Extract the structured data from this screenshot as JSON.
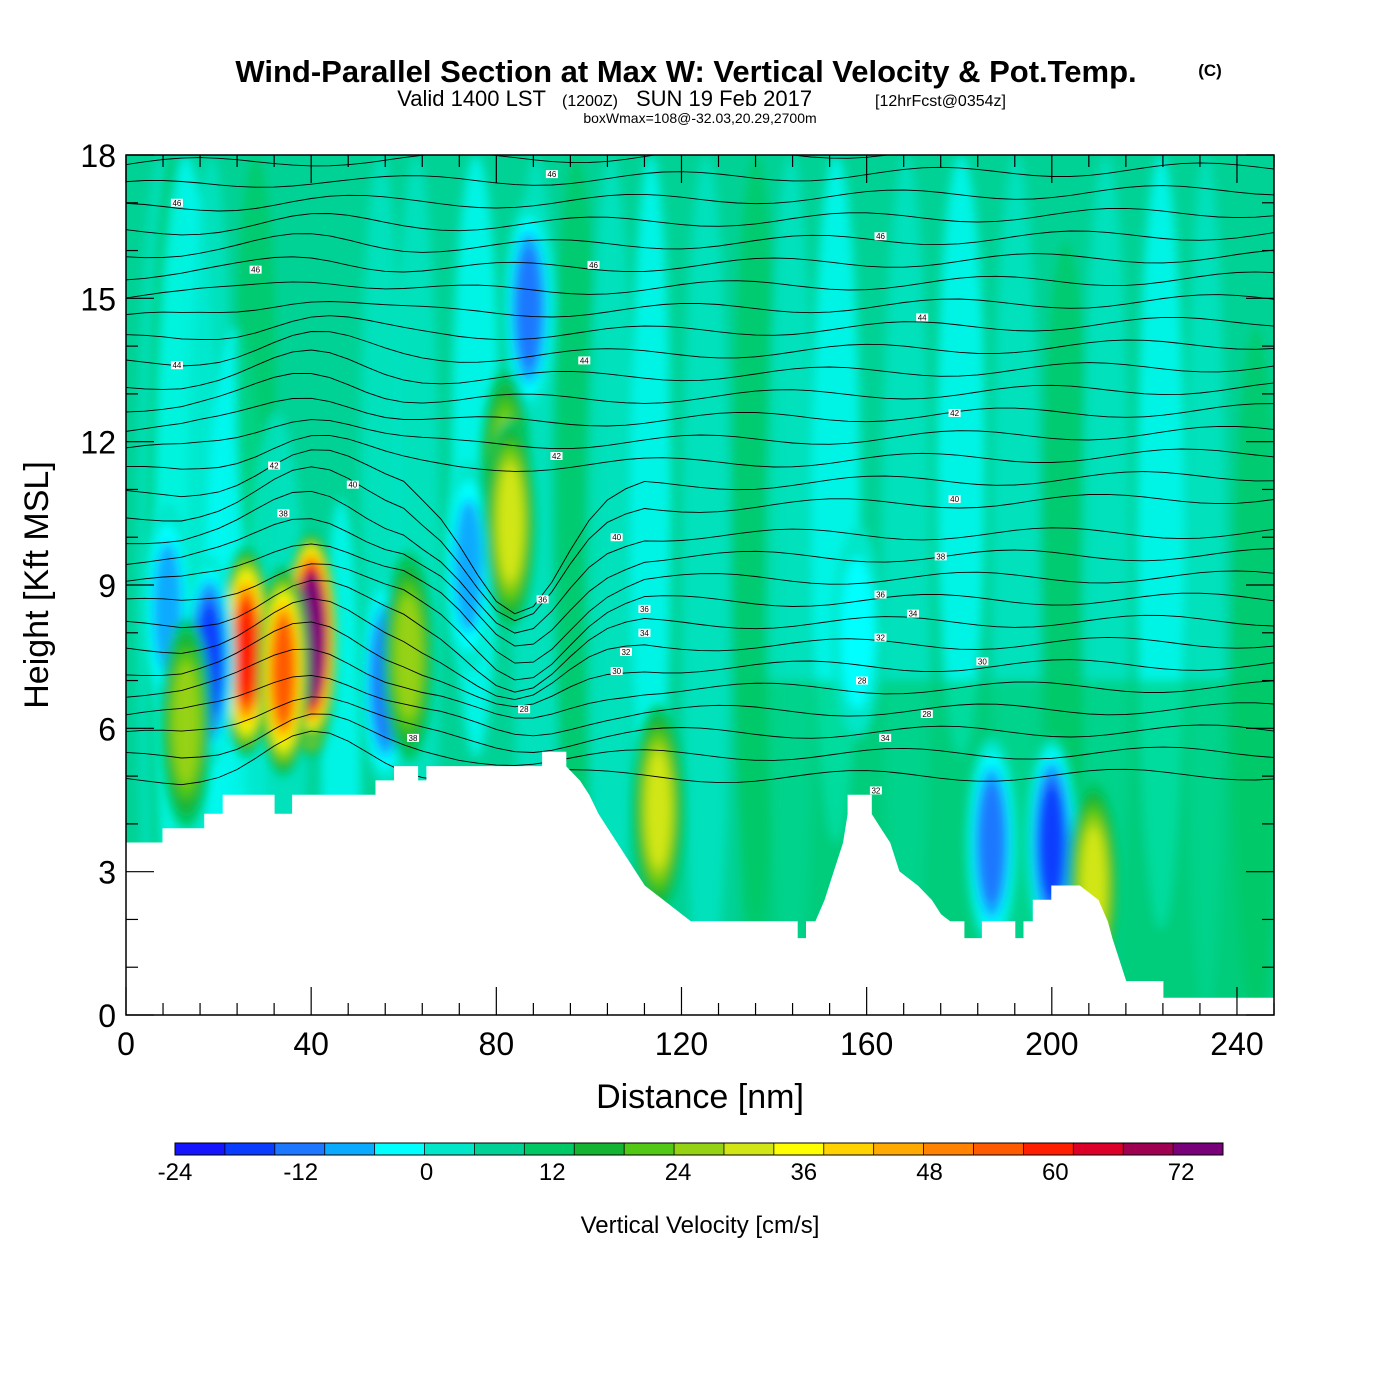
{
  "header": {
    "title": "Wind-Parallel Section at Max W: Vertical Velocity & Pot.Temp.",
    "copyright": "(C)",
    "valid_a": "Valid 1400 LST",
    "valid_b": "(1200Z)",
    "valid_c": "SUN 19 Feb 2017",
    "valid_d": "[12hrFcst@0354z]",
    "box_info": "boxWmax=108@-32.03,20.29,2700m"
  },
  "chart_data": {
    "type": "heatmap",
    "xlabel": "Distance [nm]",
    "ylabel": "Height [Kft MSL]",
    "xlim": [
      0,
      248
    ],
    "ylim": [
      0,
      18
    ],
    "xticks": [
      0,
      40,
      80,
      120,
      160,
      200,
      240
    ],
    "yticks": [
      0,
      3,
      6,
      9,
      12,
      15,
      18
    ],
    "colorbar": {
      "label": "Vertical Velocity [cm/s]",
      "range": [
        -24,
        76
      ],
      "step": 4,
      "tick_labels": [
        "-24",
        "-12",
        "0",
        "12",
        "24",
        "36",
        "48",
        "60",
        "72"
      ],
      "tick_values": [
        -24,
        -12,
        0,
        12,
        24,
        36,
        48,
        60,
        72
      ],
      "colors": [
        "#1414ff",
        "#0a3cff",
        "#1e78ff",
        "#0aaaff",
        "#00ffff",
        "#00e6c8",
        "#00d296",
        "#00c864",
        "#14b432",
        "#50c814",
        "#96d214",
        "#d2e614",
        "#ffff00",
        "#ffd200",
        "#ffaa00",
        "#ff8200",
        "#ff5a00",
        "#ff1e00",
        "#dc0028",
        "#a00050",
        "#780078"
      ]
    },
    "terrain": [
      [
        0,
        3.6
      ],
      [
        8,
        3.6
      ],
      [
        8,
        3.9
      ],
      [
        17,
        3.9
      ],
      [
        17,
        4.2
      ],
      [
        21,
        4.2
      ],
      [
        21,
        4.6
      ],
      [
        32,
        4.6
      ],
      [
        32,
        4.2
      ],
      [
        36,
        4.2
      ],
      [
        36,
        4.6
      ],
      [
        54,
        4.6
      ],
      [
        54,
        4.9
      ],
      [
        58,
        4.9
      ],
      [
        58,
        5.2
      ],
      [
        63,
        5.2
      ],
      [
        63,
        4.9
      ],
      [
        65,
        4.9
      ],
      [
        65,
        5.2
      ],
      [
        90,
        5.2
      ],
      [
        90,
        5.5
      ],
      [
        95,
        5.5
      ],
      [
        95,
        5.2
      ],
      [
        98,
        4.9
      ],
      [
        100,
        4.6
      ],
      [
        102,
        4.2
      ],
      [
        104,
        3.9
      ],
      [
        106,
        3.6
      ],
      [
        108,
        3.3
      ],
      [
        110,
        3
      ],
      [
        112,
        2.7
      ],
      [
        116,
        2.4
      ],
      [
        120,
        2.1
      ],
      [
        122,
        1.95
      ],
      [
        145,
        1.95
      ],
      [
        145,
        1.6
      ],
      [
        147,
        1.6
      ],
      [
        147,
        1.95
      ],
      [
        149,
        1.95
      ],
      [
        151,
        2.4
      ],
      [
        153,
        3
      ],
      [
        155,
        3.6
      ],
      [
        156,
        4.2
      ],
      [
        156,
        4.6
      ],
      [
        161,
        4.6
      ],
      [
        161,
        4.2
      ],
      [
        163,
        3.9
      ],
      [
        165,
        3.6
      ],
      [
        167,
        3
      ],
      [
        171,
        2.7
      ],
      [
        174,
        2.4
      ],
      [
        176,
        2.1
      ],
      [
        178,
        1.95
      ],
      [
        181,
        1.95
      ],
      [
        181,
        1.6
      ],
      [
        185,
        1.6
      ],
      [
        185,
        1.95
      ],
      [
        192,
        1.95
      ],
      [
        192,
        1.6
      ],
      [
        194,
        1.6
      ],
      [
        194,
        1.95
      ],
      [
        196,
        1.95
      ],
      [
        196,
        2.4
      ],
      [
        200,
        2.4
      ],
      [
        200,
        2.7
      ],
      [
        206,
        2.7
      ],
      [
        210,
        2.4
      ],
      [
        212,
        1.95
      ],
      [
        213,
        1.6
      ],
      [
        214,
        1.3
      ],
      [
        215,
        1
      ],
      [
        216,
        0.7
      ],
      [
        224,
        0.7
      ],
      [
        224,
        0.35
      ],
      [
        248,
        0.35
      ]
    ],
    "velocity_cells": [
      {
        "x": 40,
        "y": 7.6,
        "w": 62
      },
      {
        "x": 40,
        "y": 7.9,
        "w": 70
      },
      {
        "x": 26,
        "y": 7.6,
        "w": 44
      },
      {
        "x": 34,
        "y": 7.2,
        "w": 40
      },
      {
        "x": 18,
        "y": 7.4,
        "w": -20
      },
      {
        "x": 9,
        "y": 8.5,
        "w": -12
      },
      {
        "x": 56,
        "y": 7.0,
        "w": -14
      },
      {
        "x": 13,
        "y": 6.1,
        "w": 16
      },
      {
        "x": 61,
        "y": 7.5,
        "w": 14
      },
      {
        "x": 74,
        "y": 9.4,
        "w": -12
      },
      {
        "x": 87,
        "y": 14.8,
        "w": -14
      },
      {
        "x": 82,
        "y": 11.3,
        "w": 16
      },
      {
        "x": 83,
        "y": 10.3,
        "w": 18
      },
      {
        "x": 115,
        "y": 4.3,
        "w": 18
      },
      {
        "x": 187,
        "y": 3.6,
        "w": -14
      },
      {
        "x": 200,
        "y": 3.6,
        "w": -18
      },
      {
        "x": 209,
        "y": 2.7,
        "w": 20
      },
      {
        "x": 158,
        "y": 8.0,
        "w": -8
      }
    ],
    "contour_labels": [
      {
        "x": 11,
        "y": 17.0,
        "text": "46"
      },
      {
        "x": 28,
        "y": 15.6,
        "text": "46"
      },
      {
        "x": 92,
        "y": 17.6,
        "text": "46"
      },
      {
        "x": 101,
        "y": 15.7,
        "text": "46"
      },
      {
        "x": 163,
        "y": 16.3,
        "text": "46"
      },
      {
        "x": 11,
        "y": 13.6,
        "text": "44"
      },
      {
        "x": 99,
        "y": 13.7,
        "text": "44"
      },
      {
        "x": 172,
        "y": 14.6,
        "text": "44"
      },
      {
        "x": 32,
        "y": 11.5,
        "text": "42"
      },
      {
        "x": 49,
        "y": 11.1,
        "text": "40"
      },
      {
        "x": 93,
        "y": 11.7,
        "text": "42"
      },
      {
        "x": 179,
        "y": 12.6,
        "text": "42"
      },
      {
        "x": 34,
        "y": 10.5,
        "text": "38"
      },
      {
        "x": 106,
        "y": 10.0,
        "text": "40"
      },
      {
        "x": 179,
        "y": 10.8,
        "text": "40"
      },
      {
        "x": 90,
        "y": 8.7,
        "text": "36"
      },
      {
        "x": 176,
        "y": 9.6,
        "text": "38"
      },
      {
        "x": 112,
        "y": 8.5,
        "text": "36"
      },
      {
        "x": 112,
        "y": 8.0,
        "text": "34"
      },
      {
        "x": 163,
        "y": 8.8,
        "text": "36"
      },
      {
        "x": 170,
        "y": 8.4,
        "text": "34"
      },
      {
        "x": 108,
        "y": 7.6,
        "text": "32"
      },
      {
        "x": 163,
        "y": 7.9,
        "text": "32"
      },
      {
        "x": 106,
        "y": 7.2,
        "text": "30"
      },
      {
        "x": 185,
        "y": 7.4,
        "text": "30"
      },
      {
        "x": 159,
        "y": 7.0,
        "text": "28"
      },
      {
        "x": 86,
        "y": 6.4,
        "text": "28"
      },
      {
        "x": 173,
        "y": 6.3,
        "text": "28"
      },
      {
        "x": 62,
        "y": 5.8,
        "text": "38"
      },
      {
        "x": 164,
        "y": 5.8,
        "text": "34"
      },
      {
        "x": 162,
        "y": 4.7,
        "text": "32"
      }
    ]
  }
}
